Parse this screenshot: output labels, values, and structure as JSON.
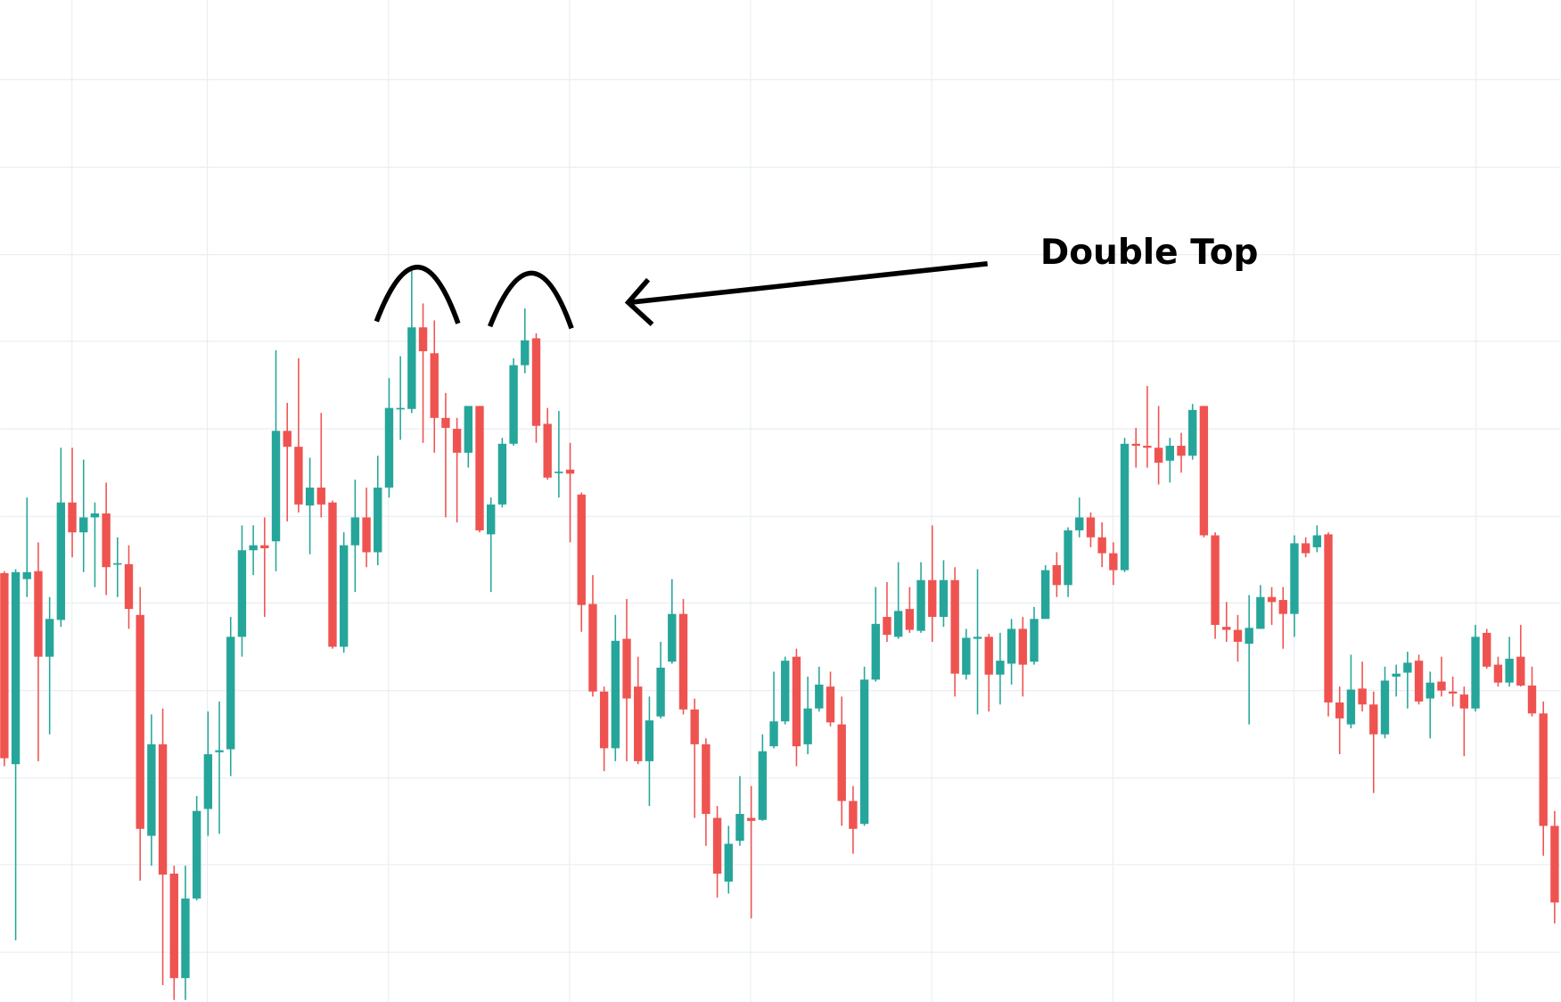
{
  "chart_data": {
    "type": "candlestick",
    "open": [
      424,
      232,
      418,
      426,
      340,
      377,
      495,
      465,
      480,
      484,
      433,
      433,
      382,
      160,
      252,
      122,
      17,
      97,
      187,
      244,
      247,
      360,
      447,
      452,
      456,
      567,
      551,
      492,
      510,
      495,
      350,
      452,
      480,
      445,
      510,
      589,
      589,
      671,
      645,
      580,
      569,
      545,
      592,
      463,
      493,
      554,
      633,
      660,
      574,
      525,
      528,
      503,
      393,
      305,
      248,
      358,
      310,
      235,
      280,
      335,
      383,
      287,
      252,
      178,
      114,
      155,
      178,
      176,
      250,
      275,
      340,
      252,
      288,
      310,
      272,
      195,
      172,
      317,
      380,
      360,
      388,
      366,
      417,
      380,
      417,
      322,
      358,
      360,
      322,
      333,
      368,
      335,
      378,
      432,
      412,
      467,
      480,
      460,
      444,
      427,
      554,
      552,
      550,
      537,
      552,
      542,
      592,
      462,
      370,
      367,
      353,
      368,
      400,
      397,
      383,
      454,
      450,
      463,
      294,
      272,
      308,
      292,
      262,
      320,
      324,
      336,
      298,
      315,
      305,
      302,
      288,
      364,
      332,
      314,
      340,
      311,
      283,
      170
    ],
    "high": [
      426,
      428,
      500,
      455,
      400,
      550,
      550,
      538,
      495,
      515,
      460,
      452,
      410,
      282,
      288,
      130,
      130,
      200,
      285,
      295,
      380,
      472,
      472,
      480,
      648,
      595,
      640,
      540,
      585,
      497,
      465,
      518,
      510,
      542,
      620,
      642,
      732,
      695,
      678,
      605,
      580,
      592,
      592,
      500,
      560,
      640,
      690,
      665,
      590,
      587,
      555,
      505,
      422,
      310,
      382,
      398,
      340,
      300,
      355,
      418,
      398,
      298,
      258,
      190,
      170,
      220,
      210,
      262,
      325,
      340,
      348,
      320,
      330,
      325,
      300,
      210,
      330,
      410,
      415,
      435,
      410,
      435,
      472,
      437,
      430,
      368,
      428,
      363,
      364,
      378,
      380,
      390,
      432,
      445,
      470,
      500,
      485,
      475,
      455,
      560,
      570,
      612,
      592,
      560,
      565,
      594,
      592,
      465,
      395,
      382,
      402,
      412,
      410,
      410,
      462,
      460,
      472,
      465,
      310,
      342,
      335,
      305,
      330,
      332,
      345,
      342,
      325,
      340,
      320,
      310,
      372,
      368,
      340,
      360,
      372,
      330,
      295,
      185
    ],
    "low": [
      230,
      55,
      400,
      235,
      262,
      370,
      440,
      425,
      410,
      402,
      400,
      368,
      115,
      130,
      10,
      -5,
      -5,
      95,
      160,
      162,
      220,
      340,
      422,
      380,
      426,
      476,
      485,
      443,
      480,
      348,
      344,
      405,
      430,
      432,
      500,
      558,
      585,
      555,
      545,
      480,
      475,
      530,
      465,
      405,
      490,
      552,
      625,
      555,
      518,
      500,
      455,
      365,
      300,
      225,
      235,
      235,
      232,
      190,
      278,
      333,
      282,
      178,
      150,
      98,
      102,
      150,
      77,
      175,
      248,
      272,
      230,
      242,
      285,
      270,
      170,
      142,
      170,
      315,
      355,
      358,
      364,
      364,
      355,
      370,
      300,
      317,
      282,
      285,
      292,
      312,
      300,
      332,
      378,
      400,
      400,
      460,
      450,
      430,
      412,
      425,
      530,
      530,
      513,
      515,
      525,
      538,
      460,
      358,
      355,
      335,
      272,
      368,
      372,
      348,
      360,
      440,
      445,
      280,
      242,
      268,
      285,
      203,
      258,
      300,
      288,
      292,
      258,
      300,
      290,
      240,
      285,
      328,
      310,
      310,
      310,
      280,
      140,
      72
    ],
    "close": [
      238,
      425,
      425,
      340,
      378,
      495,
      465,
      480,
      484,
      430,
      434,
      388,
      167,
      252,
      121,
      17,
      97,
      185,
      242,
      246,
      360,
      447,
      452,
      449,
      567,
      551,
      493,
      510,
      493,
      350,
      452,
      480,
      445,
      510,
      590,
      590,
      671,
      647,
      580,
      570,
      545,
      592,
      467,
      493,
      554,
      633,
      658,
      572,
      520,
      526,
      524,
      392,
      305,
      248,
      356,
      298,
      235,
      276,
      329,
      383,
      287,
      252,
      182,
      122,
      152,
      182,
      175,
      245,
      275,
      336,
      250,
      288,
      312,
      274,
      195,
      167,
      317,
      373,
      362,
      386,
      367,
      417,
      380,
      417,
      323,
      359,
      360,
      322,
      336,
      368,
      332,
      378,
      427,
      412,
      467,
      480,
      460,
      444,
      427,
      554,
      552,
      550,
      535,
      552,
      542,
      588,
      462,
      372,
      367,
      355,
      369,
      400,
      395,
      383,
      454,
      444,
      462,
      294,
      278,
      307,
      292,
      262,
      316,
      323,
      334,
      295,
      314,
      306,
      303,
      288,
      360,
      330,
      314,
      338,
      311,
      283,
      170,
      93
    ],
    "up_color": "#26a69a",
    "down_color": "#ef5350",
    "ylim": [
      -7,
      1000
    ],
    "yticks": [
      43,
      131,
      218,
      306,
      394,
      481,
      569,
      657,
      744,
      832,
      920
    ],
    "grid": true,
    "annotation": "Double Top"
  }
}
